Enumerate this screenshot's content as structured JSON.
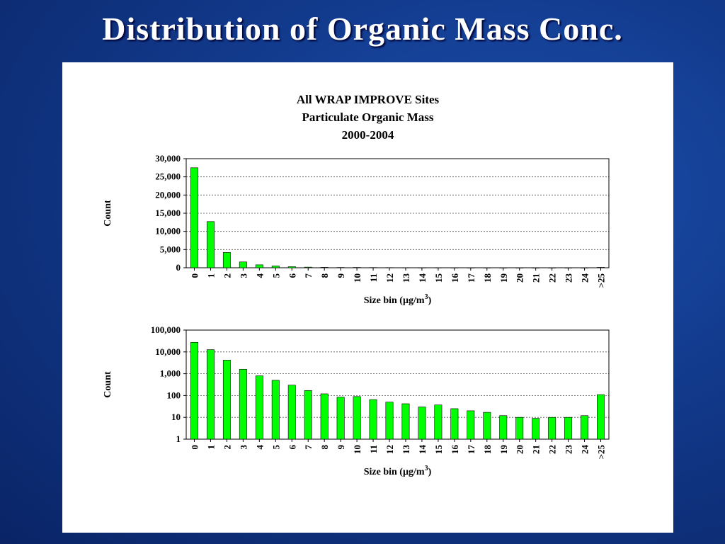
{
  "slide": {
    "title": "Distribution of Organic Mass Conc."
  },
  "chart_title_lines": [
    "All WRAP IMPROVE Sites",
    "Particulate Organic Mass",
    "2000-2004"
  ],
  "colors": {
    "bar": "#00ff00",
    "bar_outline": "#000000",
    "background": "#0a2466"
  },
  "chart_data": [
    {
      "type": "bar",
      "title": "All WRAP IMPROVE Sites Particulate Organic Mass 2000-2004",
      "xlabel": "Size bin (µg/m3)",
      "ylabel": "Count",
      "scale": "linear",
      "ylim": [
        0,
        30000
      ],
      "grid": true,
      "yticks": [
        "0",
        "5,000",
        "10,000",
        "15,000",
        "20,000",
        "25,000",
        "30,000"
      ],
      "categories": [
        "0",
        "1",
        "2",
        "3",
        "4",
        "5",
        "6",
        "7",
        "8",
        "9",
        "10",
        "11",
        "12",
        "13",
        "14",
        "15",
        "16",
        "17",
        "18",
        "19",
        "20",
        "21",
        "22",
        "23",
        "24",
        ">25"
      ],
      "values": [
        27500,
        12700,
        4200,
        1600,
        800,
        500,
        300,
        170,
        120,
        85,
        90,
        65,
        50,
        42,
        30,
        37,
        25,
        20,
        17,
        12,
        10,
        9,
        10,
        10,
        12,
        110
      ]
    },
    {
      "type": "bar",
      "xlabel": "Size bin (µg/m3)",
      "ylabel": "Count",
      "scale": "log",
      "ylim": [
        1,
        100000
      ],
      "grid": true,
      "yticks": [
        "1",
        "10",
        "100",
        "1,000",
        "10,000",
        "100,000"
      ],
      "categories": [
        "0",
        "1",
        "2",
        "3",
        "4",
        "5",
        "6",
        "7",
        "8",
        "9",
        "10",
        "11",
        "12",
        "13",
        "14",
        "15",
        "16",
        "17",
        "18",
        "19",
        "20",
        "21",
        "22",
        "23",
        "24",
        ">25"
      ],
      "values": [
        27500,
        12700,
        4200,
        1600,
        800,
        500,
        300,
        170,
        120,
        85,
        90,
        65,
        50,
        42,
        30,
        37,
        25,
        20,
        17,
        12,
        10,
        9,
        10,
        10,
        12,
        110
      ]
    }
  ]
}
